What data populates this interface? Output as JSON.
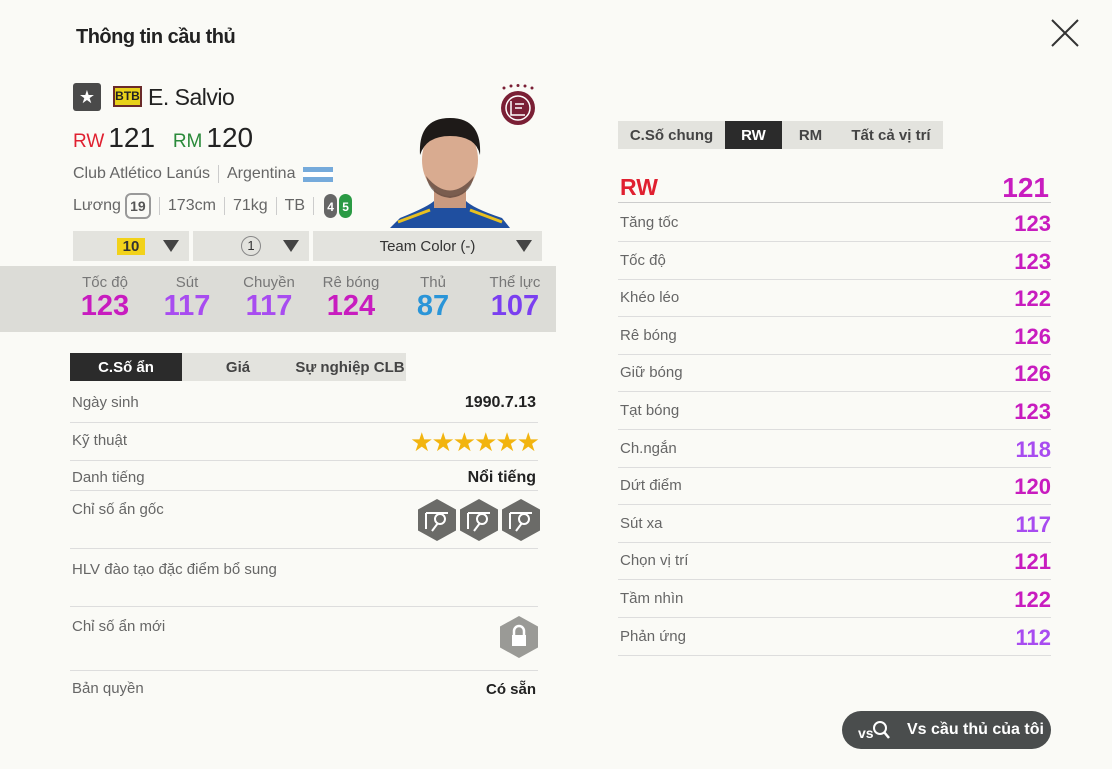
{
  "title": "Thông tin cầu thủ",
  "colors": {
    "tier120": "#c81cbf",
    "tier110": "#a84cf0",
    "tier100": "#7b3ff0",
    "tier80": "#2a95d8",
    "pos_rw": "#e02030",
    "pos_rm": "#2a8a3a"
  },
  "player": {
    "season_badge": "BTB",
    "name": "E. Salvio",
    "positions": [
      {
        "pos": "RW",
        "ovr": "121"
      },
      {
        "pos": "RM",
        "ovr": "120"
      }
    ],
    "club": "Club Atlético Lanús",
    "nation": "Argentina",
    "salary_label": "Lương",
    "salary": "19",
    "height": "173cm",
    "weight": "71kg",
    "body": "TB",
    "weak_foot": "4",
    "strong_foot": "5"
  },
  "selectors": {
    "upgrade": "10",
    "level": "1",
    "team_color": "Team Color (-)"
  },
  "summary": [
    {
      "label": "Tốc độ",
      "value": 123
    },
    {
      "label": "Sút",
      "value": 117
    },
    {
      "label": "Chuyền",
      "value": 117
    },
    {
      "label": "Rê bóng",
      "value": 124
    },
    {
      "label": "Thủ",
      "value": 87
    },
    {
      "label": "Thể lực",
      "value": 107
    }
  ],
  "hidden_tabs": [
    "C.Số ẩn",
    "Giá",
    "Sự nghiệp CLB"
  ],
  "hidden": {
    "birth_label": "Ngày sinh",
    "birth": "1990.7.13",
    "skill_label": "Kỹ thuật",
    "skill_stars": 6,
    "rep_label": "Danh tiếng",
    "rep": "Nổi tiếng",
    "traits_label": "Chỉ số ẩn gốc",
    "traits": [
      "finesse-shot-icon",
      "outside-foot-shot-icon",
      "speed-dribbler-icon"
    ],
    "coach_label": "HLV đào tạo đặc điểm bổ sung",
    "new_label": "Chỉ số ẩn mới",
    "license_label": "Bản quyền",
    "license": "Có sẵn"
  },
  "stat_tabs": [
    "C.Số chung",
    "RW",
    "RM",
    "Tất cả vị trí"
  ],
  "stat_tab_active": 1,
  "pos_header": {
    "label": "RW",
    "value": 121
  },
  "stats": [
    {
      "label": "Tăng tốc",
      "value": 123
    },
    {
      "label": "Tốc độ",
      "value": 123
    },
    {
      "label": "Khéo léo",
      "value": 122
    },
    {
      "label": "Rê bóng",
      "value": 126
    },
    {
      "label": "Giữ bóng",
      "value": 126
    },
    {
      "label": "Tạt bóng",
      "value": 123
    },
    {
      "label": "Ch.ngắn",
      "value": 118
    },
    {
      "label": "Dứt điểm",
      "value": 120
    },
    {
      "label": "Sút xa",
      "value": 117
    },
    {
      "label": "Chọn vị trí",
      "value": 121
    },
    {
      "label": "Tầm nhìn",
      "value": 122
    },
    {
      "label": "Phản ứng",
      "value": 112
    }
  ],
  "compare_button": "Vs cầu thủ của tôi"
}
